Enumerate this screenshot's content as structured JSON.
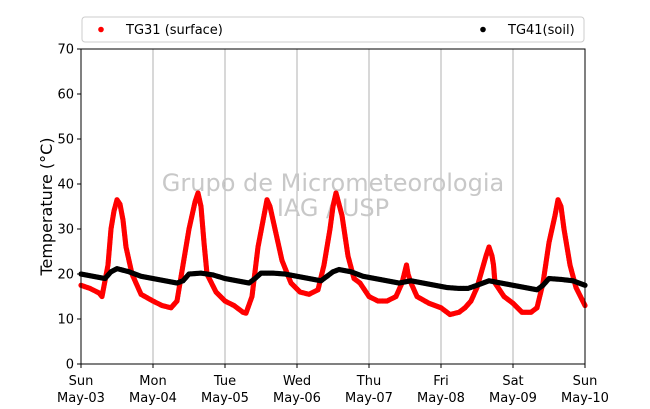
{
  "chart_data": {
    "type": "scatter",
    "title": "",
    "xlabel": "",
    "ylabel": "Temperature (°C)",
    "ylim": [
      0,
      70
    ],
    "yticks": [
      0,
      10,
      20,
      30,
      40,
      50,
      60,
      70
    ],
    "xlim": [
      "2020-05-03 00:00",
      "2020-05-10 00:00"
    ],
    "xticks": [
      {
        "x": "2020-05-03 00:00",
        "day": "Sun",
        "date": "May-03"
      },
      {
        "x": "2020-05-04 00:00",
        "day": "Mon",
        "date": "May-04"
      },
      {
        "x": "2020-05-05 00:00",
        "day": "Tue",
        "date": "May-05"
      },
      {
        "x": "2020-05-06 00:00",
        "day": "Wed",
        "date": "May-06"
      },
      {
        "x": "2020-05-07 00:00",
        "day": "Thu",
        "date": "May-07"
      },
      {
        "x": "2020-05-08 00:00",
        "day": "Fri",
        "date": "May-08"
      },
      {
        "x": "2020-05-09 00:00",
        "day": "Sat",
        "date": "May-09"
      },
      {
        "x": "2020-05-10 00:00",
        "day": "Sun",
        "date": "May-10"
      }
    ],
    "grid": "vertical-only",
    "legend_position": "top",
    "watermark": [
      "Grupo de Micrometeorologia",
      "IAG / USP"
    ],
    "series": [
      {
        "name": "TG31 (surface)",
        "color": "#ff0000",
        "points": [
          [
            "2020-05-03 00:00",
            17.5
          ],
          [
            "2020-05-03 03:00",
            16.8
          ],
          [
            "2020-05-03 06:00",
            15.8
          ],
          [
            "2020-05-03 07:00",
            15.0
          ],
          [
            "2020-05-03 09:00",
            22.0
          ],
          [
            "2020-05-03 10:00",
            30.0
          ],
          [
            "2020-05-03 11:00",
            34.0
          ],
          [
            "2020-05-03 12:00",
            36.5
          ],
          [
            "2020-05-03 13:00",
            35.5
          ],
          [
            "2020-05-03 14:00",
            32.0
          ],
          [
            "2020-05-03 15:00",
            26.0
          ],
          [
            "2020-05-03 17:00",
            20.0
          ],
          [
            "2020-05-03 20:00",
            15.5
          ],
          [
            "2020-05-04 00:00",
            14.0
          ],
          [
            "2020-05-04 03:00",
            13.0
          ],
          [
            "2020-05-04 06:00",
            12.5
          ],
          [
            "2020-05-04 08:00",
            14.0
          ],
          [
            "2020-05-04 10:00",
            22.0
          ],
          [
            "2020-05-04 12:00",
            30.0
          ],
          [
            "2020-05-04 14:00",
            36.0
          ],
          [
            "2020-05-04 15:00",
            38.0
          ],
          [
            "2020-05-04 16:00",
            35.0
          ],
          [
            "2020-05-04 17:00",
            27.0
          ],
          [
            "2020-05-04 18:00",
            20.0
          ],
          [
            "2020-05-04 21:00",
            16.0
          ],
          [
            "2020-05-05 00:00",
            14.0
          ],
          [
            "2020-05-05 03:00",
            13.0
          ],
          [
            "2020-05-05 06:00",
            11.5
          ],
          [
            "2020-05-05 07:00",
            11.3
          ],
          [
            "2020-05-05 09:00",
            15.0
          ],
          [
            "2020-05-05 11:00",
            26.0
          ],
          [
            "2020-05-05 13:00",
            33.0
          ],
          [
            "2020-05-05 14:00",
            36.5
          ],
          [
            "2020-05-05 15:00",
            35.0
          ],
          [
            "2020-05-05 17:00",
            29.0
          ],
          [
            "2020-05-05 19:00",
            23.0
          ],
          [
            "2020-05-05 22:00",
            18.0
          ],
          [
            "2020-05-06 01:00",
            16.0
          ],
          [
            "2020-05-06 04:00",
            15.5
          ],
          [
            "2020-05-06 07:00",
            16.5
          ],
          [
            "2020-05-06 09:00",
            22.0
          ],
          [
            "2020-05-06 11:00",
            30.0
          ],
          [
            "2020-05-06 12:00",
            35.0
          ],
          [
            "2020-05-06 13:00",
            38.0
          ],
          [
            "2020-05-06 15:00",
            33.0
          ],
          [
            "2020-05-06 17:00",
            24.0
          ],
          [
            "2020-05-06 19:00",
            19.0
          ],
          [
            "2020-05-06 21:00",
            18.0
          ],
          [
            "2020-05-07 00:00",
            15.0
          ],
          [
            "2020-05-07 03:00",
            14.0
          ],
          [
            "2020-05-07 06:00",
            14.0
          ],
          [
            "2020-05-07 09:00",
            15.0
          ],
          [
            "2020-05-07 11:00",
            18.0
          ],
          [
            "2020-05-07 12:30",
            22.0
          ],
          [
            "2020-05-07 13:00",
            20.0
          ],
          [
            "2020-05-07 14:00",
            18.0
          ],
          [
            "2020-05-07 16:00",
            15.0
          ],
          [
            "2020-05-07 20:00",
            13.5
          ],
          [
            "2020-05-08 00:00",
            12.5
          ],
          [
            "2020-05-08 03:00",
            11.0
          ],
          [
            "2020-05-08 06:00",
            11.5
          ],
          [
            "2020-05-08 08:00",
            12.5
          ],
          [
            "2020-05-08 10:00",
            14.0
          ],
          [
            "2020-05-08 12:00",
            17.0
          ],
          [
            "2020-05-08 13:30",
            20.5
          ],
          [
            "2020-05-08 15:00",
            24.0
          ],
          [
            "2020-05-08 16:00",
            26.0
          ],
          [
            "2020-05-08 17:00",
            24.0
          ],
          [
            "2020-05-08 17:30",
            22.0
          ],
          [
            "2020-05-08 18:00",
            18.0
          ],
          [
            "2020-05-08 21:00",
            15.0
          ],
          [
            "2020-05-09 00:00",
            13.5
          ],
          [
            "2020-05-09 03:00",
            11.5
          ],
          [
            "2020-05-09 06:00",
            11.5
          ],
          [
            "2020-05-09 08:00",
            12.5
          ],
          [
            "2020-05-09 10:00",
            18.0
          ],
          [
            "2020-05-09 12:00",
            27.0
          ],
          [
            "2020-05-09 14:00",
            33.0
          ],
          [
            "2020-05-09 15:00",
            36.5
          ],
          [
            "2020-05-09 16:00",
            35.0
          ],
          [
            "2020-05-09 17:00",
            30.0
          ],
          [
            "2020-05-09 19:00",
            22.0
          ],
          [
            "2020-05-09 21:00",
            17.0
          ],
          [
            "2020-05-10 00:00",
            13.0
          ]
        ]
      },
      {
        "name": "TG41(soil)",
        "color": "#000000",
        "points": [
          [
            "2020-05-03 00:00",
            20.0
          ],
          [
            "2020-05-03 04:00",
            19.5
          ],
          [
            "2020-05-03 08:00",
            19.0
          ],
          [
            "2020-05-03 10:00",
            20.5
          ],
          [
            "2020-05-03 12:00",
            21.2
          ],
          [
            "2020-05-03 16:00",
            20.5
          ],
          [
            "2020-05-03 20:00",
            19.5
          ],
          [
            "2020-05-04 00:00",
            19.0
          ],
          [
            "2020-05-04 04:00",
            18.5
          ],
          [
            "2020-05-04 08:00",
            18.0
          ],
          [
            "2020-05-04 10:00",
            18.5
          ],
          [
            "2020-05-04 12:00",
            20.0
          ],
          [
            "2020-05-04 16:00",
            20.2
          ],
          [
            "2020-05-04 20:00",
            19.8
          ],
          [
            "2020-05-05 00:00",
            19.0
          ],
          [
            "2020-05-05 04:00",
            18.5
          ],
          [
            "2020-05-05 08:00",
            18.0
          ],
          [
            "2020-05-05 10:00",
            19.0
          ],
          [
            "2020-05-05 12:00",
            20.2
          ],
          [
            "2020-05-05 16:00",
            20.2
          ],
          [
            "2020-05-05 20:00",
            20.0
          ],
          [
            "2020-05-06 00:00",
            19.5
          ],
          [
            "2020-05-06 04:00",
            19.0
          ],
          [
            "2020-05-06 08:00",
            18.5
          ],
          [
            "2020-05-06 10:00",
            19.5
          ],
          [
            "2020-05-06 12:00",
            20.5
          ],
          [
            "2020-05-06 14:00",
            21.0
          ],
          [
            "2020-05-06 18:00",
            20.5
          ],
          [
            "2020-05-06 22:00",
            19.5
          ],
          [
            "2020-05-07 02:00",
            19.0
          ],
          [
            "2020-05-07 06:00",
            18.5
          ],
          [
            "2020-05-07 10:00",
            18.0
          ],
          [
            "2020-05-07 14:00",
            18.5
          ],
          [
            "2020-05-07 18:00",
            18.0
          ],
          [
            "2020-05-07 22:00",
            17.5
          ],
          [
            "2020-05-08 02:00",
            17.0
          ],
          [
            "2020-05-08 06:00",
            16.8
          ],
          [
            "2020-05-08 09:00",
            16.8
          ],
          [
            "2020-05-08 12:00",
            17.5
          ],
          [
            "2020-05-08 16:00",
            18.5
          ],
          [
            "2020-05-08 20:00",
            18.0
          ],
          [
            "2020-05-09 00:00",
            17.5
          ],
          [
            "2020-05-09 04:00",
            17.0
          ],
          [
            "2020-05-09 08:00",
            16.5
          ],
          [
            "2020-05-09 10:00",
            17.5
          ],
          [
            "2020-05-09 12:00",
            19.0
          ],
          [
            "2020-05-09 16:00",
            18.8
          ],
          [
            "2020-05-09 20:00",
            18.5
          ],
          [
            "2020-05-10 00:00",
            17.5
          ]
        ]
      }
    ]
  }
}
